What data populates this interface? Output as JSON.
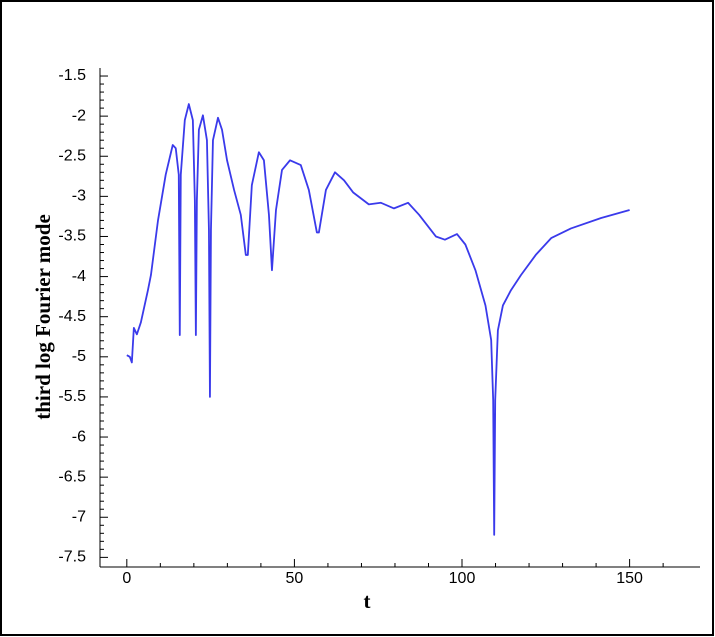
{
  "chart_data": {
    "type": "line",
    "xlabel": "t",
    "ylabel": "third log Fourier mode",
    "xlim": [
      -8,
      171
    ],
    "ylim": [
      -7.62,
      -1.4
    ],
    "xticks": [
      0,
      50,
      100,
      150
    ],
    "yticks": [
      -7.5,
      -7,
      -6.5,
      -6,
      -5.5,
      -5,
      -4.5,
      -4,
      -3.5,
      -3,
      -2.5,
      -2,
      -1.5
    ],
    "xminor_ticks": [
      10,
      20,
      30,
      40,
      60,
      70,
      80,
      90,
      110,
      120,
      130,
      140,
      160
    ],
    "yminor_ticks": [
      -7.4,
      -7.3,
      -7.2,
      -7.1,
      -6.9,
      -6.8,
      -6.7,
      -6.6,
      -6.4,
      -6.3,
      -6.2,
      -6.1,
      -5.9,
      -5.8,
      -5.7,
      -5.6,
      -5.4,
      -5.3,
      -5.2,
      -5.1,
      -4.9,
      -4.8,
      -4.7,
      -4.6,
      -4.4,
      -4.3,
      -4.2,
      -4.1,
      -3.9,
      -3.8,
      -3.7,
      -3.6,
      -3.4,
      -3.3,
      -3.2,
      -3.1,
      -2.9,
      -2.8,
      -2.7,
      -2.6,
      -2.4,
      -2.3,
      -2.2,
      -2.1,
      -1.9,
      -1.8,
      -1.7,
      -1.6
    ],
    "series": [
      {
        "color": "#3a3aeb",
        "x": [
          0,
          0.9,
          1.5,
          2.1,
          3,
          4.2,
          6.3,
          7.2,
          9.3,
          11.6,
          13.7,
          14.6,
          15.5,
          15.8,
          16.1,
          17.3,
          18.5,
          19.7,
          20.3,
          20.6,
          20.9,
          21.5,
          22.7,
          23.9,
          24.5,
          24.8,
          25.1,
          25.7,
          27.2,
          28.4,
          29.9,
          32,
          34,
          35.5,
          36.1,
          37.3,
          39.4,
          40.9,
          42.4,
          43.3,
          44.5,
          46.3,
          48.7,
          51.9,
          54.3,
          56.7,
          57.3,
          59.4,
          62.1,
          64.8,
          67.5,
          72.2,
          75.8,
          79.7,
          83.9,
          87.2,
          92.2,
          94.9,
          98.5,
          101,
          104,
          107,
          108.7,
          109.3,
          109.6,
          109.9,
          110.7,
          112.2,
          114.6,
          117.6,
          122,
          126.6,
          132.5,
          141.5,
          150
        ],
        "values": [
          -4.98,
          -5.0,
          -5.07,
          -4.64,
          -4.72,
          -4.57,
          -4.17,
          -3.98,
          -3.3,
          -2.73,
          -2.36,
          -2.4,
          -2.73,
          -4.73,
          -2.73,
          -2.05,
          -1.85,
          -2.05,
          -3.05,
          -4.73,
          -3.05,
          -2.17,
          -1.99,
          -2.3,
          -3.42,
          -5.5,
          -3.42,
          -2.3,
          -2.02,
          -2.17,
          -2.55,
          -2.92,
          -3.23,
          -3.73,
          -3.73,
          -2.86,
          -2.45,
          -2.55,
          -3.23,
          -3.92,
          -3.17,
          -2.67,
          -2.55,
          -2.61,
          -2.92,
          -3.45,
          -3.45,
          -2.92,
          -2.7,
          -2.8,
          -2.95,
          -3.1,
          -3.08,
          -3.15,
          -3.08,
          -3.23,
          -3.5,
          -3.54,
          -3.47,
          -3.6,
          -3.92,
          -4.36,
          -4.79,
          -5.54,
          -7.22,
          -5.54,
          -4.67,
          -4.36,
          -4.17,
          -3.98,
          -3.73,
          -3.52,
          -3.4,
          -3.27,
          -3.17
        ]
      }
    ]
  }
}
